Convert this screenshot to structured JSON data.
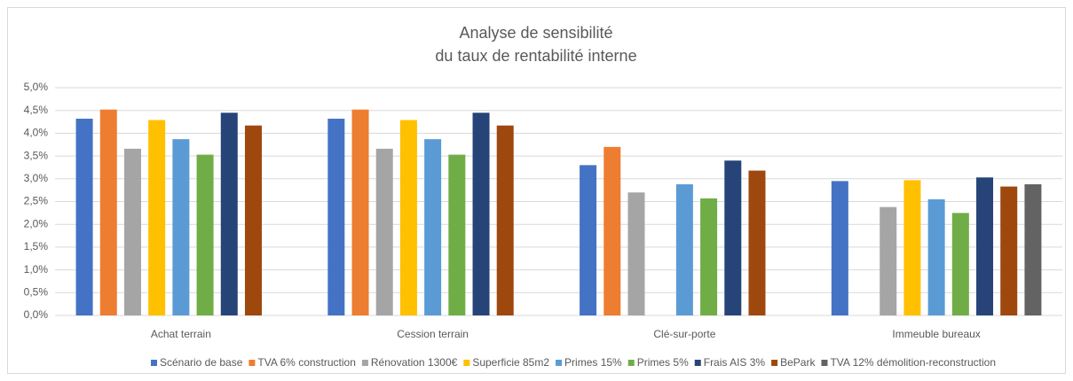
{
  "chart_data": {
    "type": "bar",
    "title": [
      "Analyse de sensibilité",
      "du taux de rentabilité interne"
    ],
    "categories": [
      "Achat terrain",
      "Cession terrain",
      "Clé-sur-porte",
      "Immeuble bureaux"
    ],
    "series": [
      {
        "name": "Scénario de base",
        "color": "#4472c4",
        "values": [
          4.32,
          4.32,
          3.3,
          2.95
        ]
      },
      {
        "name": "TVA 6% construction",
        "color": "#ed7d31",
        "values": [
          4.52,
          4.52,
          3.7,
          null
        ]
      },
      {
        "name": "Rénovation 1300€",
        "color": "#a5a5a5",
        "values": [
          3.66,
          3.66,
          2.7,
          2.38
        ]
      },
      {
        "name": "Superficie 85m2",
        "color": "#ffc000",
        "values": [
          4.29,
          4.29,
          null,
          2.97
        ]
      },
      {
        "name": "Primes 15%",
        "color": "#5b9bd5",
        "values": [
          3.87,
          3.87,
          2.88,
          2.55
        ]
      },
      {
        "name": "Primes 5%",
        "color": "#70ad47",
        "values": [
          3.53,
          3.53,
          2.57,
          2.25
        ]
      },
      {
        "name": "Frais AIS 3%",
        "color": "#264478",
        "values": [
          4.45,
          4.45,
          3.4,
          3.03
        ]
      },
      {
        "name": "BePark",
        "color": "#9e480e",
        "values": [
          4.17,
          4.17,
          3.18,
          2.83
        ]
      },
      {
        "name": "TVA 12% démolition-reconstruction",
        "color": "#636363",
        "values": [
          null,
          null,
          null,
          2.88
        ]
      }
    ],
    "ylim": [
      0,
      5
    ],
    "yticks": [
      {
        "value": 0,
        "label": "0,0%"
      },
      {
        "value": 0.5,
        "label": "0,5%"
      },
      {
        "value": 1,
        "label": "1,0%"
      },
      {
        "value": 1.5,
        "label": "1,5%"
      },
      {
        "value": 2,
        "label": "2,0%"
      },
      {
        "value": 2.5,
        "label": "2,5%"
      },
      {
        "value": 3,
        "label": "3,0%"
      },
      {
        "value": 3.5,
        "label": "3,5%"
      },
      {
        "value": 4,
        "label": "4,0%"
      },
      {
        "value": 4.5,
        "label": "4,5%"
      },
      {
        "value": 5,
        "label": "5,0%"
      }
    ],
    "grid": true,
    "legend": "bottom"
  }
}
